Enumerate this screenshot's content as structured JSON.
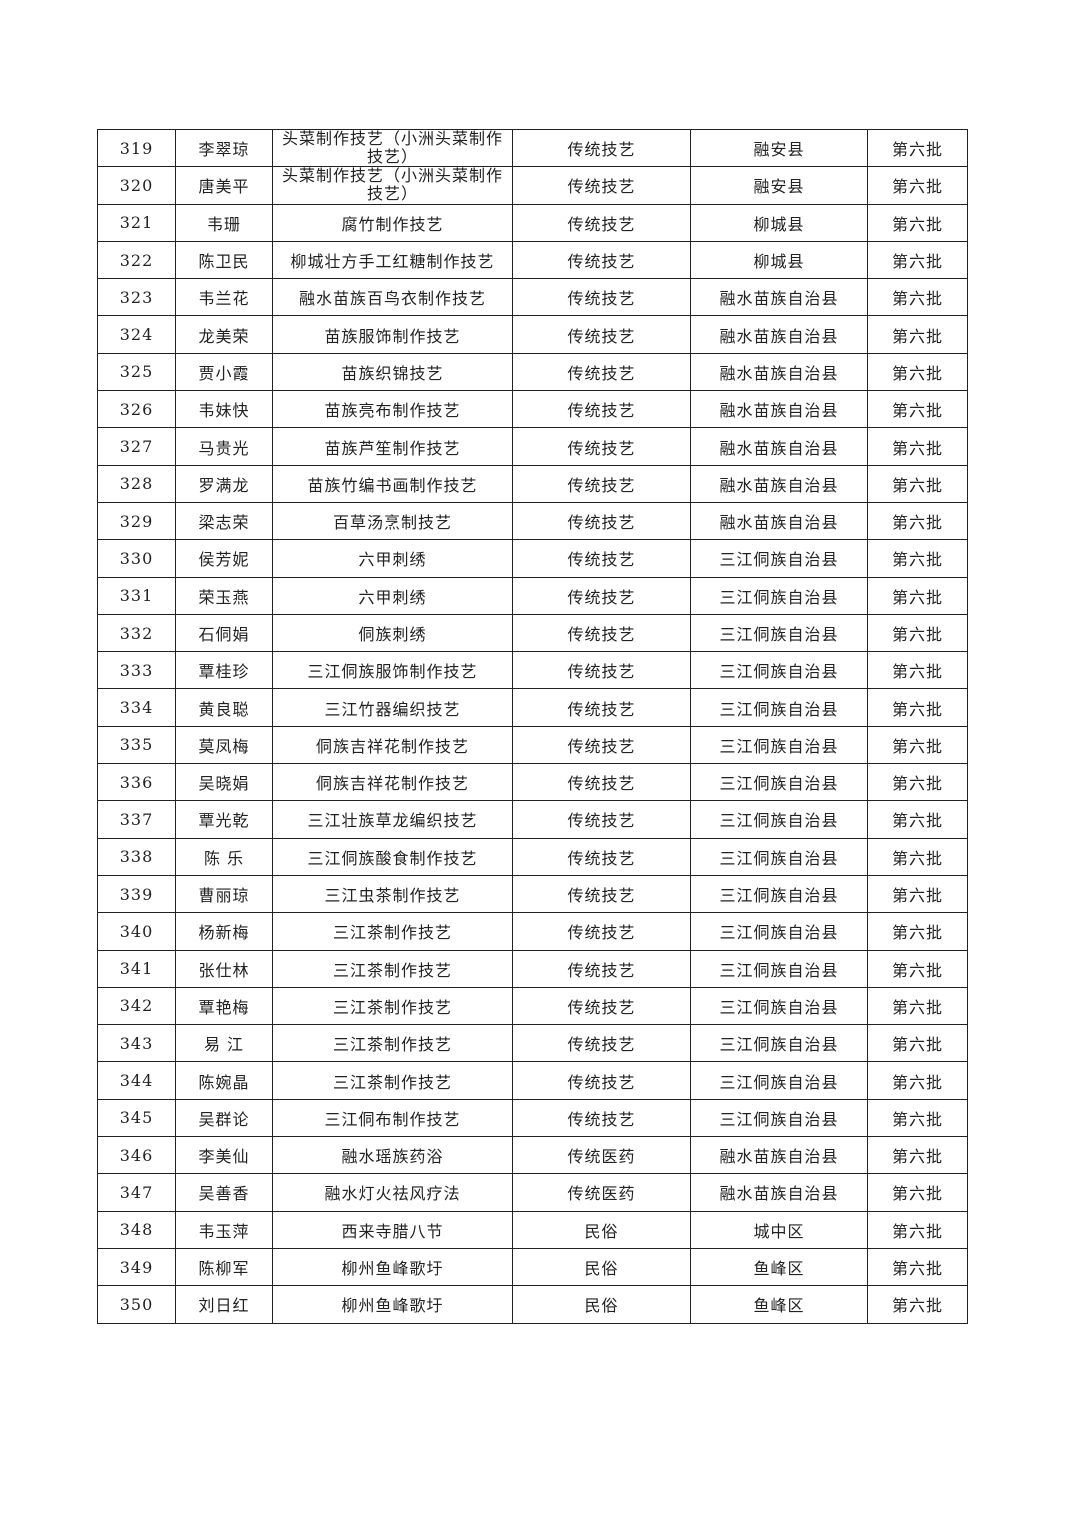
{
  "table": {
    "rows": [
      [
        "319",
        "李翠琼",
        "头菜制作技艺（小洲头菜制作技艺）",
        "传统技艺",
        "融安县",
        "第六批"
      ],
      [
        "320",
        "唐美平",
        "头菜制作技艺（小洲头菜制作技艺）",
        "传统技艺",
        "融安县",
        "第六批"
      ],
      [
        "321",
        "韦珊",
        "腐竹制作技艺",
        "传统技艺",
        "柳城县",
        "第六批"
      ],
      [
        "322",
        "陈卫民",
        "柳城壮方手工红糖制作技艺",
        "传统技艺",
        "柳城县",
        "第六批"
      ],
      [
        "323",
        "韦兰花",
        "融水苗族百鸟衣制作技艺",
        "传统技艺",
        "融水苗族自治县",
        "第六批"
      ],
      [
        "324",
        "龙美荣",
        "苗族服饰制作技艺",
        "传统技艺",
        "融水苗族自治县",
        "第六批"
      ],
      [
        "325",
        "贾小霞",
        "苗族织锦技艺",
        "传统技艺",
        "融水苗族自治县",
        "第六批"
      ],
      [
        "326",
        "韦妹快",
        "苗族亮布制作技艺",
        "传统技艺",
        "融水苗族自治县",
        "第六批"
      ],
      [
        "327",
        "马贵光",
        "苗族芦笙制作技艺",
        "传统技艺",
        "融水苗族自治县",
        "第六批"
      ],
      [
        "328",
        "罗满龙",
        "苗族竹编书画制作技艺",
        "传统技艺",
        "融水苗族自治县",
        "第六批"
      ],
      [
        "329",
        "梁志荣",
        "百草汤烹制技艺",
        "传统技艺",
        "融水苗族自治县",
        "第六批"
      ],
      [
        "330",
        "侯芳妮",
        "六甲刺绣",
        "传统技艺",
        "三江侗族自治县",
        "第六批"
      ],
      [
        "331",
        "荣玉燕",
        "六甲刺绣",
        "传统技艺",
        "三江侗族自治县",
        "第六批"
      ],
      [
        "332",
        "石侗娟",
        "侗族刺绣",
        "传统技艺",
        "三江侗族自治县",
        "第六批"
      ],
      [
        "333",
        "覃桂珍",
        "三江侗族服饰制作技艺",
        "传统技艺",
        "三江侗族自治县",
        "第六批"
      ],
      [
        "334",
        "黄良聪",
        "三江竹器编织技艺",
        "传统技艺",
        "三江侗族自治县",
        "第六批"
      ],
      [
        "335",
        "莫凤梅",
        "侗族吉祥花制作技艺",
        "传统技艺",
        "三江侗族自治县",
        "第六批"
      ],
      [
        "336",
        "吴晓娟",
        "侗族吉祥花制作技艺",
        "传统技艺",
        "三江侗族自治县",
        "第六批"
      ],
      [
        "337",
        "覃光乾",
        "三江壮族草龙编织技艺",
        "传统技艺",
        "三江侗族自治县",
        "第六批"
      ],
      [
        "338",
        "陈 乐",
        "三江侗族酸食制作技艺",
        "传统技艺",
        "三江侗族自治县",
        "第六批"
      ],
      [
        "339",
        "曹丽琼",
        "三江虫茶制作技艺",
        "传统技艺",
        "三江侗族自治县",
        "第六批"
      ],
      [
        "340",
        "杨新梅",
        "三江茶制作技艺",
        "传统技艺",
        "三江侗族自治县",
        "第六批"
      ],
      [
        "341",
        "张仕林",
        "三江茶制作技艺",
        "传统技艺",
        "三江侗族自治县",
        "第六批"
      ],
      [
        "342",
        "覃艳梅",
        "三江茶制作技艺",
        "传统技艺",
        "三江侗族自治县",
        "第六批"
      ],
      [
        "343",
        "易 江",
        "三江茶制作技艺",
        "传统技艺",
        "三江侗族自治县",
        "第六批"
      ],
      [
        "344",
        "陈婉晶",
        "三江茶制作技艺",
        "传统技艺",
        "三江侗族自治县",
        "第六批"
      ],
      [
        "345",
        "吴群论",
        "三江侗布制作技艺",
        "传统技艺",
        "三江侗族自治县",
        "第六批"
      ],
      [
        "346",
        "李美仙",
        "融水瑶族药浴",
        "传统医药",
        "融水苗族自治县",
        "第六批"
      ],
      [
        "347",
        "吴善香",
        "融水灯火祛风疗法",
        "传统医药",
        "融水苗族自治县",
        "第六批"
      ],
      [
        "348",
        "韦玉萍",
        "西来寺腊八节",
        "民俗",
        "城中区",
        "第六批"
      ],
      [
        "349",
        "陈柳军",
        "柳州鱼峰歌圩",
        "民俗",
        "鱼峰区",
        "第六批"
      ],
      [
        "350",
        "刘日红",
        "柳州鱼峰歌圩",
        "民俗",
        "鱼峰区",
        "第六批"
      ]
    ]
  }
}
